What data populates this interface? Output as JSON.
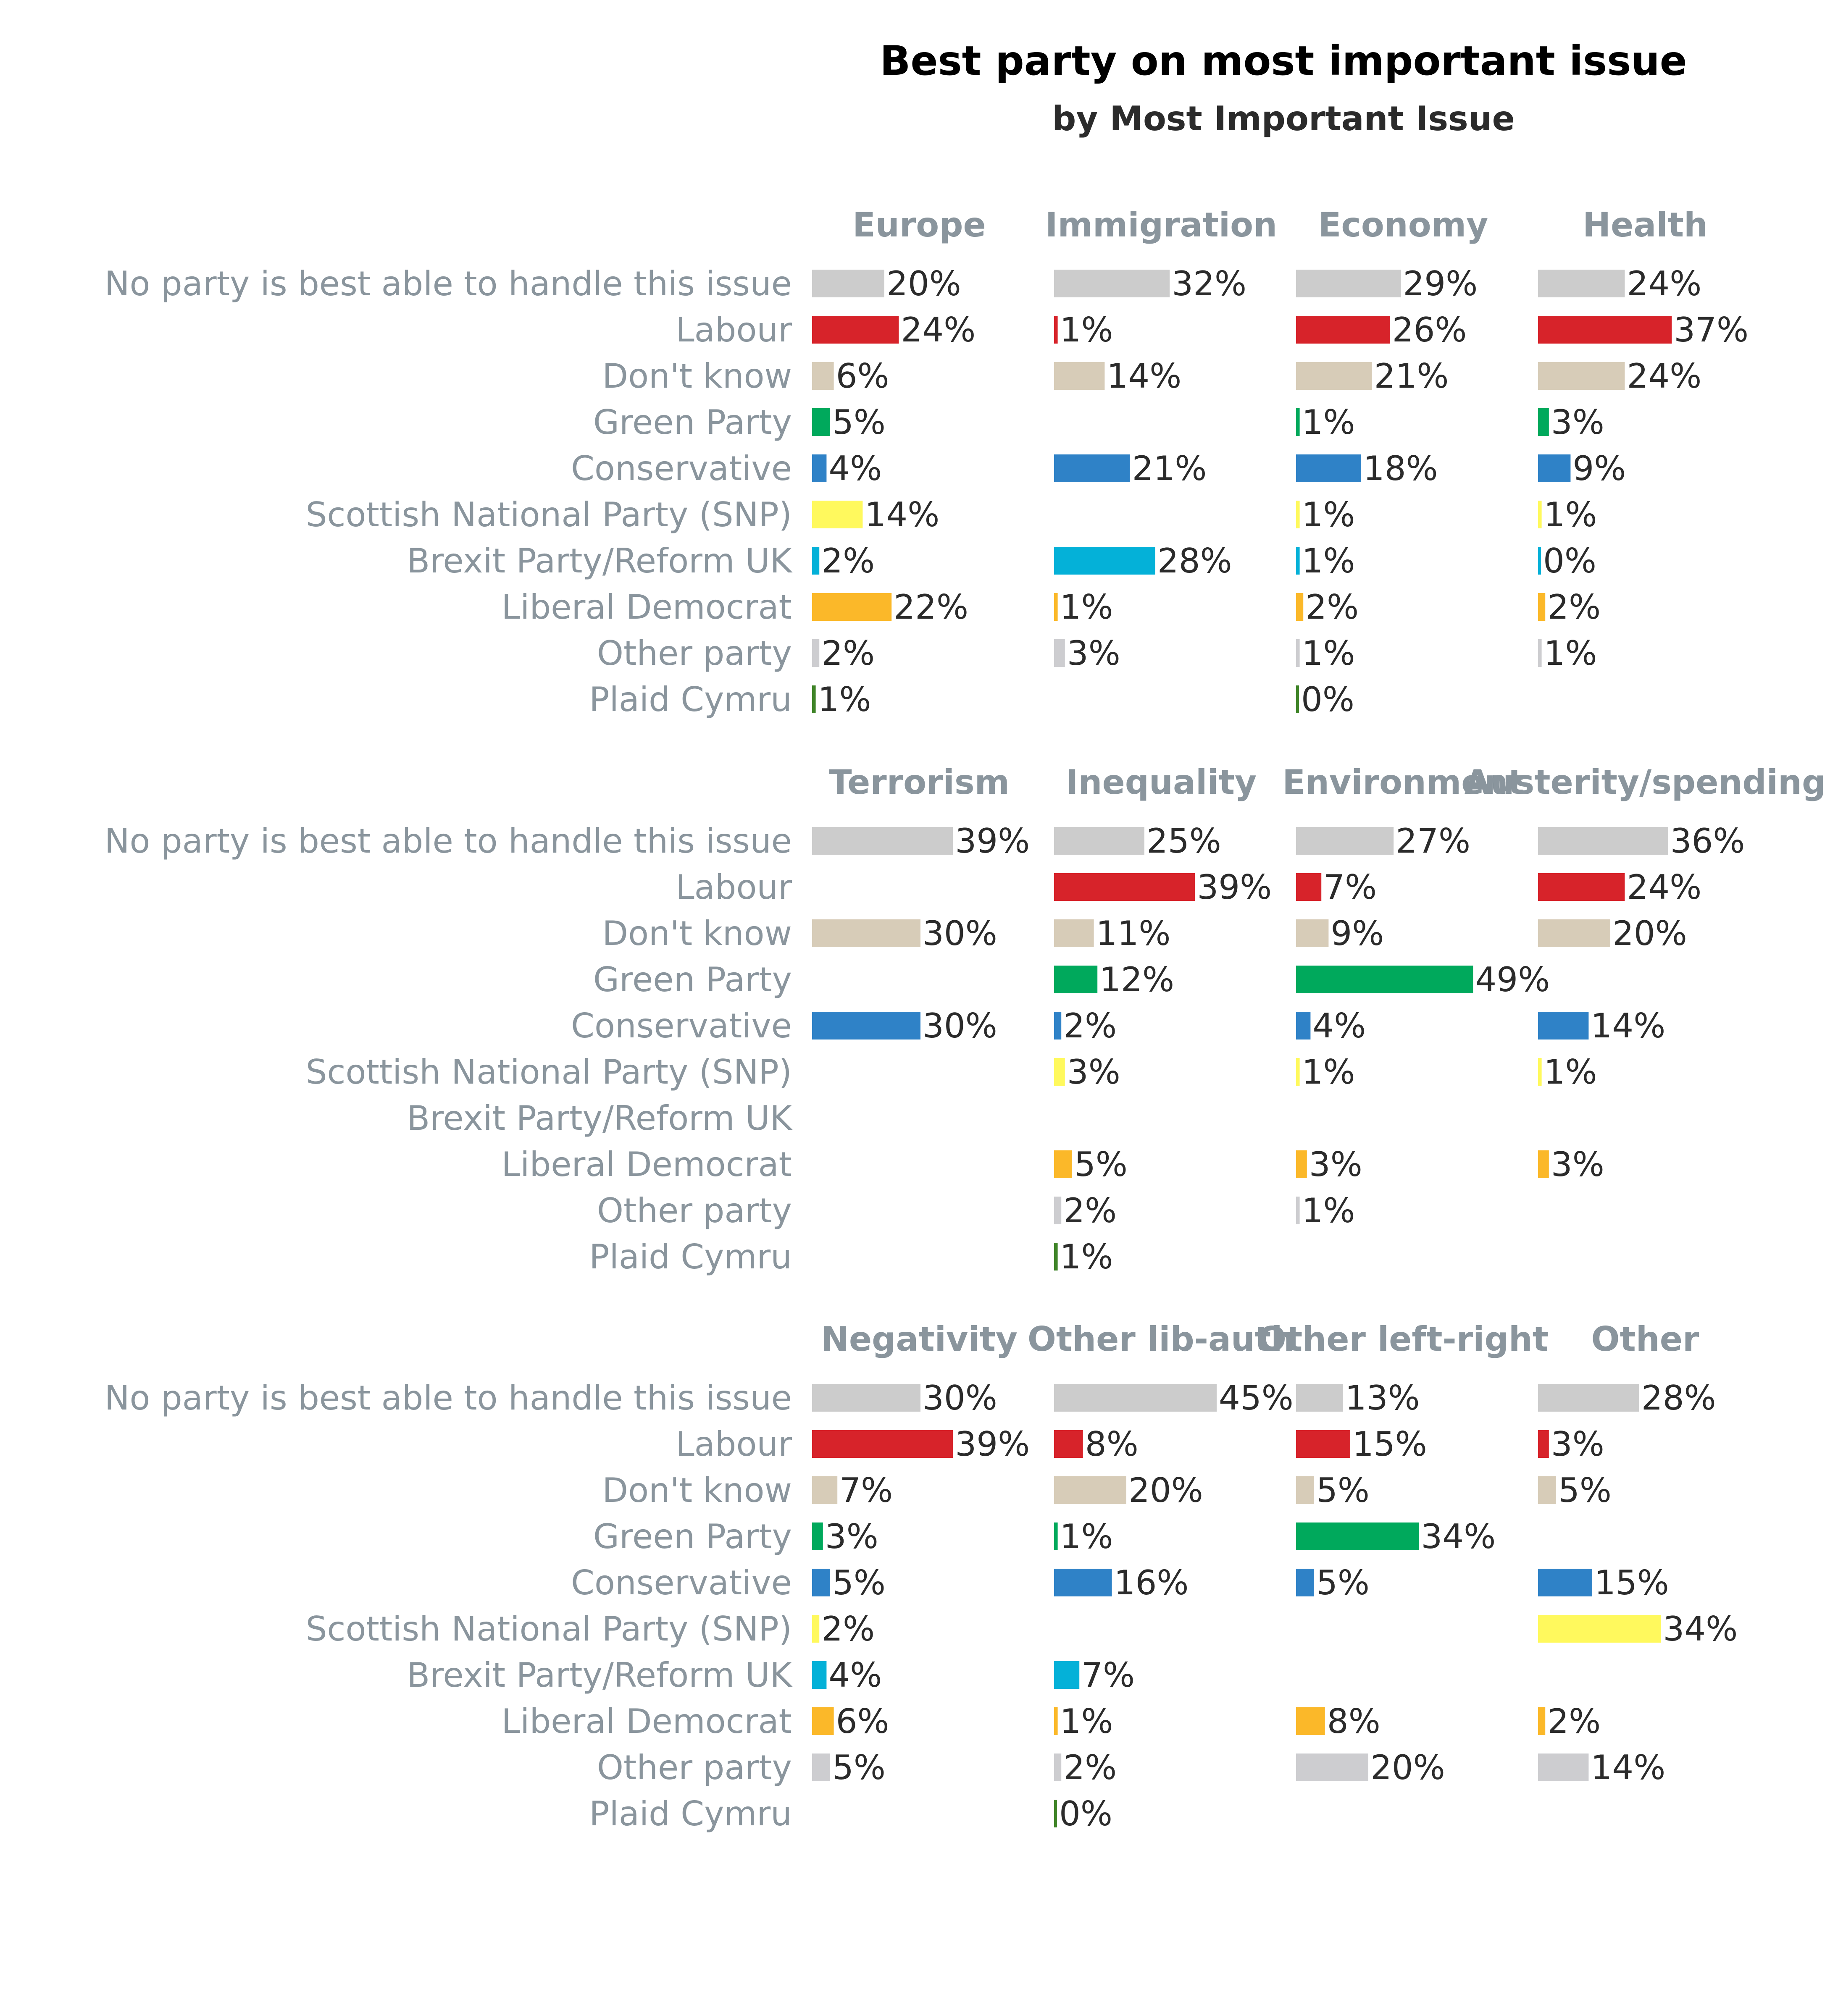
{
  "chart_data": {
    "type": "bar",
    "title": "Best party on most important issue",
    "subtitle": "by Most Important Issue",
    "categories": [
      "No party is best able to handle this issue",
      "Labour",
      "Don't know",
      "Green Party",
      "Conservative",
      "Scottish National Party (SNP)",
      "Brexit Party/Reform UK",
      "Liberal Democrat",
      "Other party",
      "Plaid Cymru"
    ],
    "colors": [
      "#cccccc",
      "#d7232a",
      "#d7ccb8",
      "#00a95c",
      "#2f82c7",
      "#fff95d",
      "#04b1d8",
      "#fbb829",
      "#cdcdd0",
      "#3f8428"
    ],
    "value_suffix": "%",
    "panels": [
      {
        "name": "Europe",
        "values": [
          20,
          24,
          6,
          5,
          4,
          14,
          2,
          22,
          2,
          1
        ]
      },
      {
        "name": "Immigration",
        "values": [
          32,
          1,
          14,
          null,
          21,
          null,
          28,
          1,
          3,
          null
        ]
      },
      {
        "name": "Economy",
        "values": [
          29,
          26,
          21,
          1,
          18,
          1,
          1,
          2,
          1,
          0
        ]
      },
      {
        "name": "Health",
        "values": [
          24,
          37,
          24,
          3,
          9,
          1,
          0,
          2,
          1,
          null
        ]
      },
      {
        "name": "Terrorism",
        "values": [
          39,
          null,
          30,
          null,
          30,
          null,
          null,
          null,
          null,
          null
        ]
      },
      {
        "name": "Inequality",
        "values": [
          25,
          39,
          11,
          12,
          2,
          3,
          null,
          5,
          2,
          1
        ]
      },
      {
        "name": "Environment",
        "values": [
          27,
          7,
          9,
          49,
          4,
          1,
          null,
          3,
          1,
          null
        ]
      },
      {
        "name": "Austerity/spending",
        "values": [
          36,
          24,
          20,
          null,
          14,
          1,
          null,
          3,
          null,
          null
        ]
      },
      {
        "name": "Negativity",
        "values": [
          30,
          39,
          7,
          3,
          5,
          2,
          4,
          6,
          5,
          null
        ]
      },
      {
        "name": "Other lib-auth",
        "values": [
          45,
          8,
          20,
          1,
          16,
          null,
          7,
          1,
          2,
          0
        ]
      },
      {
        "name": "Other left-right",
        "values": [
          13,
          15,
          5,
          34,
          5,
          null,
          null,
          8,
          20,
          null
        ]
      },
      {
        "name": "Other",
        "values": [
          28,
          3,
          5,
          null,
          15,
          34,
          null,
          2,
          14,
          null
        ]
      }
    ]
  }
}
